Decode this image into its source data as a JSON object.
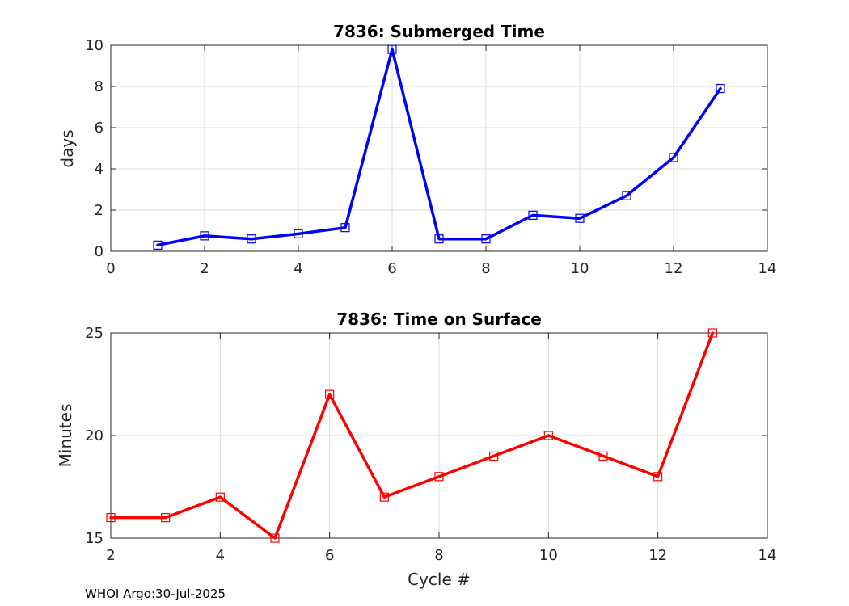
{
  "footer": {
    "text": "WHOI Argo:30-Jul-2025"
  },
  "chart_data": [
    {
      "type": "line",
      "title": "7836: Submerged Time",
      "xlabel": "",
      "ylabel": "days",
      "xlim": [
        0,
        14
      ],
      "ylim": [
        0,
        10
      ],
      "xticks": [
        0,
        2,
        4,
        6,
        8,
        10,
        12,
        14
      ],
      "yticks": [
        0,
        2,
        4,
        6,
        8,
        10
      ],
      "grid": true,
      "color": "#0000ff",
      "marker": "square",
      "series": [
        {
          "x": [
            1,
            2,
            3,
            4,
            5,
            6,
            7,
            8,
            9,
            10,
            11,
            12,
            13
          ],
          "values": [
            0.3,
            0.75,
            0.6,
            0.85,
            1.15,
            9.8,
            0.6,
            0.6,
            1.75,
            1.6,
            2.7,
            4.55,
            7.9
          ]
        }
      ]
    },
    {
      "type": "line",
      "title": "7836: Time on Surface",
      "xlabel": "Cycle #",
      "ylabel": "Minutes",
      "xlim": [
        2,
        14
      ],
      "ylim": [
        15,
        25
      ],
      "xticks": [
        2,
        4,
        6,
        8,
        10,
        12,
        14
      ],
      "yticks": [
        15,
        20,
        25
      ],
      "grid": true,
      "color": "#ff0000",
      "marker": "square",
      "series": [
        {
          "x": [
            2,
            3,
            4,
            5,
            6,
            7,
            8,
            9,
            10,
            11,
            12,
            13
          ],
          "values": [
            16,
            16,
            17,
            15,
            22,
            17,
            18,
            19,
            20,
            19,
            18,
            25
          ]
        }
      ]
    }
  ]
}
